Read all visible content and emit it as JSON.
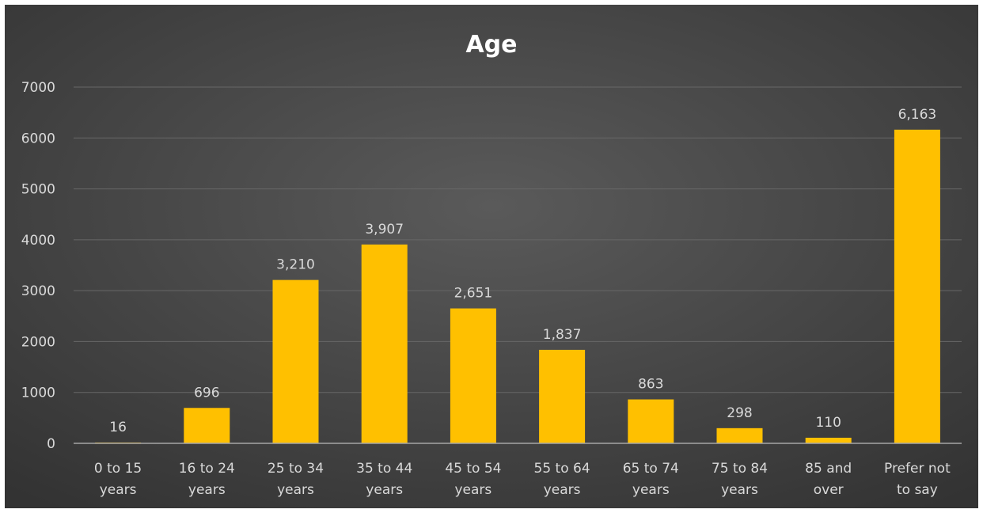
{
  "chart_data": {
    "type": "bar",
    "title": "Age",
    "categories": [
      [
        "0 to 15",
        "years"
      ],
      [
        "16 to 24",
        "years"
      ],
      [
        "25 to 34",
        "years"
      ],
      [
        "35 to 44",
        "years"
      ],
      [
        "45 to 54",
        "years"
      ],
      [
        "55 to 64",
        "years"
      ],
      [
        "65 to 74",
        "years"
      ],
      [
        "75 to 84",
        "years"
      ],
      [
        "85 and",
        "over"
      ],
      [
        "Prefer not",
        "to say"
      ]
    ],
    "values": [
      16,
      696,
      3210,
      3907,
      2651,
      1837,
      863,
      298,
      110,
      6163
    ],
    "data_labels": [
      "16",
      "696",
      "3,210",
      "3,907",
      "2,651",
      "1,837",
      "863",
      "298",
      "110",
      "6,163"
    ],
    "yticks": [
      "0",
      "1000",
      "2000",
      "3000",
      "4000",
      "5000",
      "6000",
      "7000"
    ],
    "ylim": [
      0,
      7000
    ],
    "grid": true,
    "legend": "none",
    "colors": {
      "bar": "#ffc000",
      "background_top": "#5a5a5a",
      "background_bottom": "#333333",
      "gridline": "#676767",
      "baseline": "#a6a6a6",
      "text": "#d9d9d9",
      "title": "#ffffff"
    }
  }
}
